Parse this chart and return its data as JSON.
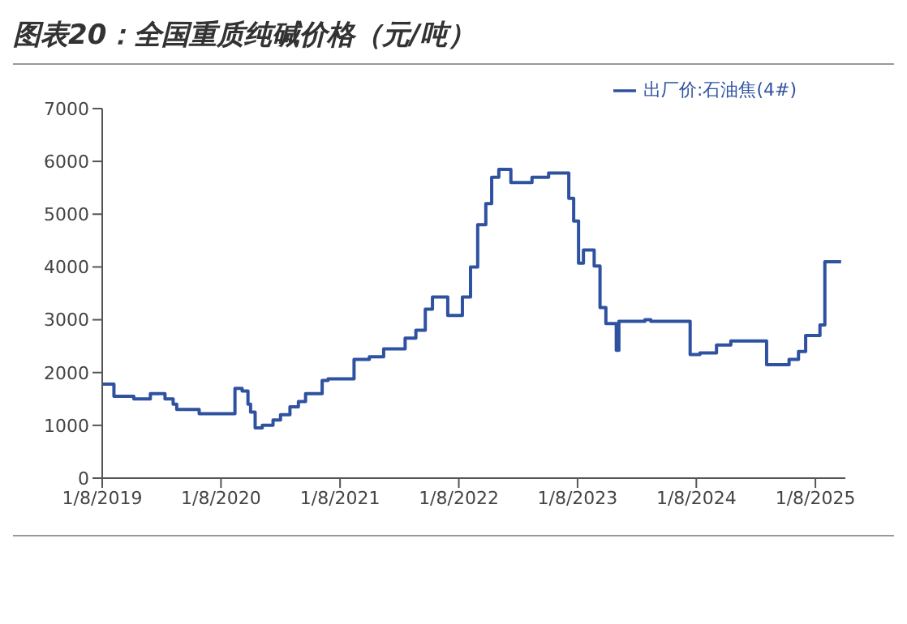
{
  "chart_data": {
    "type": "step",
    "title": "图表20：全国重质纯碱价格（元/吨）",
    "x": [
      "2019-01-08",
      "2019-02-13",
      "2019-04-15",
      "2019-06-05",
      "2019-07-20",
      "2019-08-14",
      "2019-08-25",
      "2019-11-02",
      "2020-02-20",
      "2020-03-13",
      "2020-03-31",
      "2020-04-08",
      "2020-04-22",
      "2020-05-14",
      "2020-06-16",
      "2020-07-09",
      "2020-08-07",
      "2020-09-02",
      "2020-09-24",
      "2020-11-14",
      "2020-12-02",
      "2021-02-20",
      "2021-04-08",
      "2021-05-22",
      "2021-07-27",
      "2021-08-29",
      "2021-09-27",
      "2021-10-19",
      "2021-12-05",
      "2022-01-19",
      "2022-02-13",
      "2022-03-07",
      "2022-04-01",
      "2022-04-19",
      "2022-05-11",
      "2022-06-17",
      "2022-08-21",
      "2022-10-11",
      "2022-12-12",
      "2022-12-27",
      "2023-01-11",
      "2023-01-26",
      "2023-02-28",
      "2023-03-18",
      "2023-04-05",
      "2023-05-07",
      "2023-05-15",
      "2023-08-03",
      "2023-08-21",
      "2023-12-20",
      "2024-01-19",
      "2024-03-10",
      "2024-04-23",
      "2024-08-11",
      "2024-10-19",
      "2024-11-17",
      "2024-12-09",
      "2025-01-22",
      "2025-02-06",
      "2025-03-28"
    ],
    "series": [
      {
        "name": "出厂价:石油焦(4#)",
        "color": "#2f52a0",
        "values": [
          1780,
          1550,
          1500,
          1600,
          1500,
          1400,
          1300,
          1220,
          1700,
          1650,
          1400,
          1250,
          950,
          1000,
          1100,
          1200,
          1350,
          1450,
          1600,
          1850,
          1880,
          2250,
          2300,
          2450,
          2650,
          2800,
          3200,
          3430,
          3080,
          3430,
          4000,
          4800,
          5200,
          5700,
          5850,
          5600,
          5700,
          5780,
          5300,
          4870,
          4070,
          4320,
          4020,
          3230,
          2930,
          2420,
          2970,
          3000,
          2970,
          2340,
          2370,
          2520,
          2600,
          2150,
          2250,
          2400,
          2700,
          2900,
          4100,
          4100
        ]
      }
    ],
    "xlim": [
      "2019-01-08",
      "2025-04-10"
    ],
    "xticks": [
      {
        "value": "2019-01-08",
        "label": "1/8/2019"
      },
      {
        "value": "2020-01-08",
        "label": "1/8/2020"
      },
      {
        "value": "2021-01-08",
        "label": "1/8/2021"
      },
      {
        "value": "2022-01-08",
        "label": "1/8/2022"
      },
      {
        "value": "2023-01-08",
        "label": "1/8/2023"
      },
      {
        "value": "2024-01-08",
        "label": "1/8/2024"
      },
      {
        "value": "2025-01-08",
        "label": "1/8/2025"
      }
    ],
    "ylim": [
      0,
      7000
    ],
    "yticks": [
      0,
      1000,
      2000,
      3000,
      4000,
      5000,
      6000,
      7000
    ],
    "grid": false,
    "legend": "top right",
    "marker": "none",
    "line_style": "solid"
  }
}
